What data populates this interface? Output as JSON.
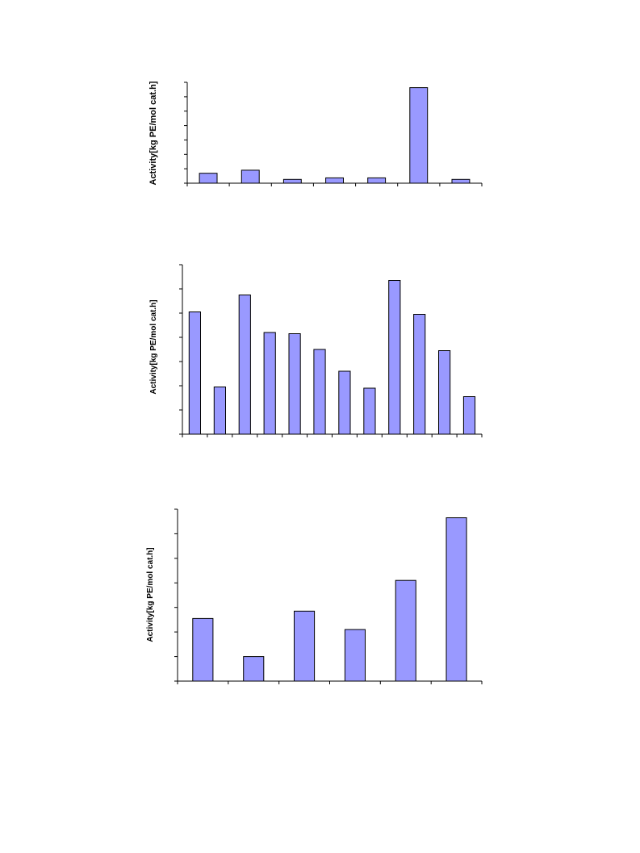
{
  "style": {
    "bar_fill": "#9999ff",
    "bar_stroke": "#000000",
    "axis_color": "#000000"
  },
  "chart_data": [
    {
      "type": "bar",
      "ylabel": "Activity[kg PE/mol cat.h]",
      "categories": [
        "",
        "",
        "",
        "",
        "",
        "",
        ""
      ],
      "values": [
        6.5,
        8.5,
        2.5,
        3.5,
        3.5,
        62.5,
        2.5
      ],
      "ylim": [
        0,
        66
      ],
      "ytick_count": 8,
      "grid": false
    },
    {
      "type": "bar",
      "ylabel": "Activity[kg PE/mol cat.h]",
      "categories": [
        "",
        "",
        "",
        "",
        "",
        "",
        "",
        "",
        "",
        "",
        "",
        ""
      ],
      "values": [
        50.5,
        19.5,
        57.5,
        42,
        41.5,
        35,
        26,
        19,
        63.5,
        49.5,
        34.5,
        15.5
      ],
      "ylim": [
        0,
        70
      ],
      "ytick_count": 8,
      "grid": false
    },
    {
      "type": "bar",
      "ylabel": "Activity[kg PE/mol cat.h]",
      "categories": [
        "",
        "",
        "",
        "",
        "",
        ""
      ],
      "values": [
        25.5,
        10,
        28.5,
        21,
        41,
        66.5
      ],
      "ylim": [
        0,
        70
      ],
      "ytick_count": 8,
      "grid": false
    }
  ]
}
